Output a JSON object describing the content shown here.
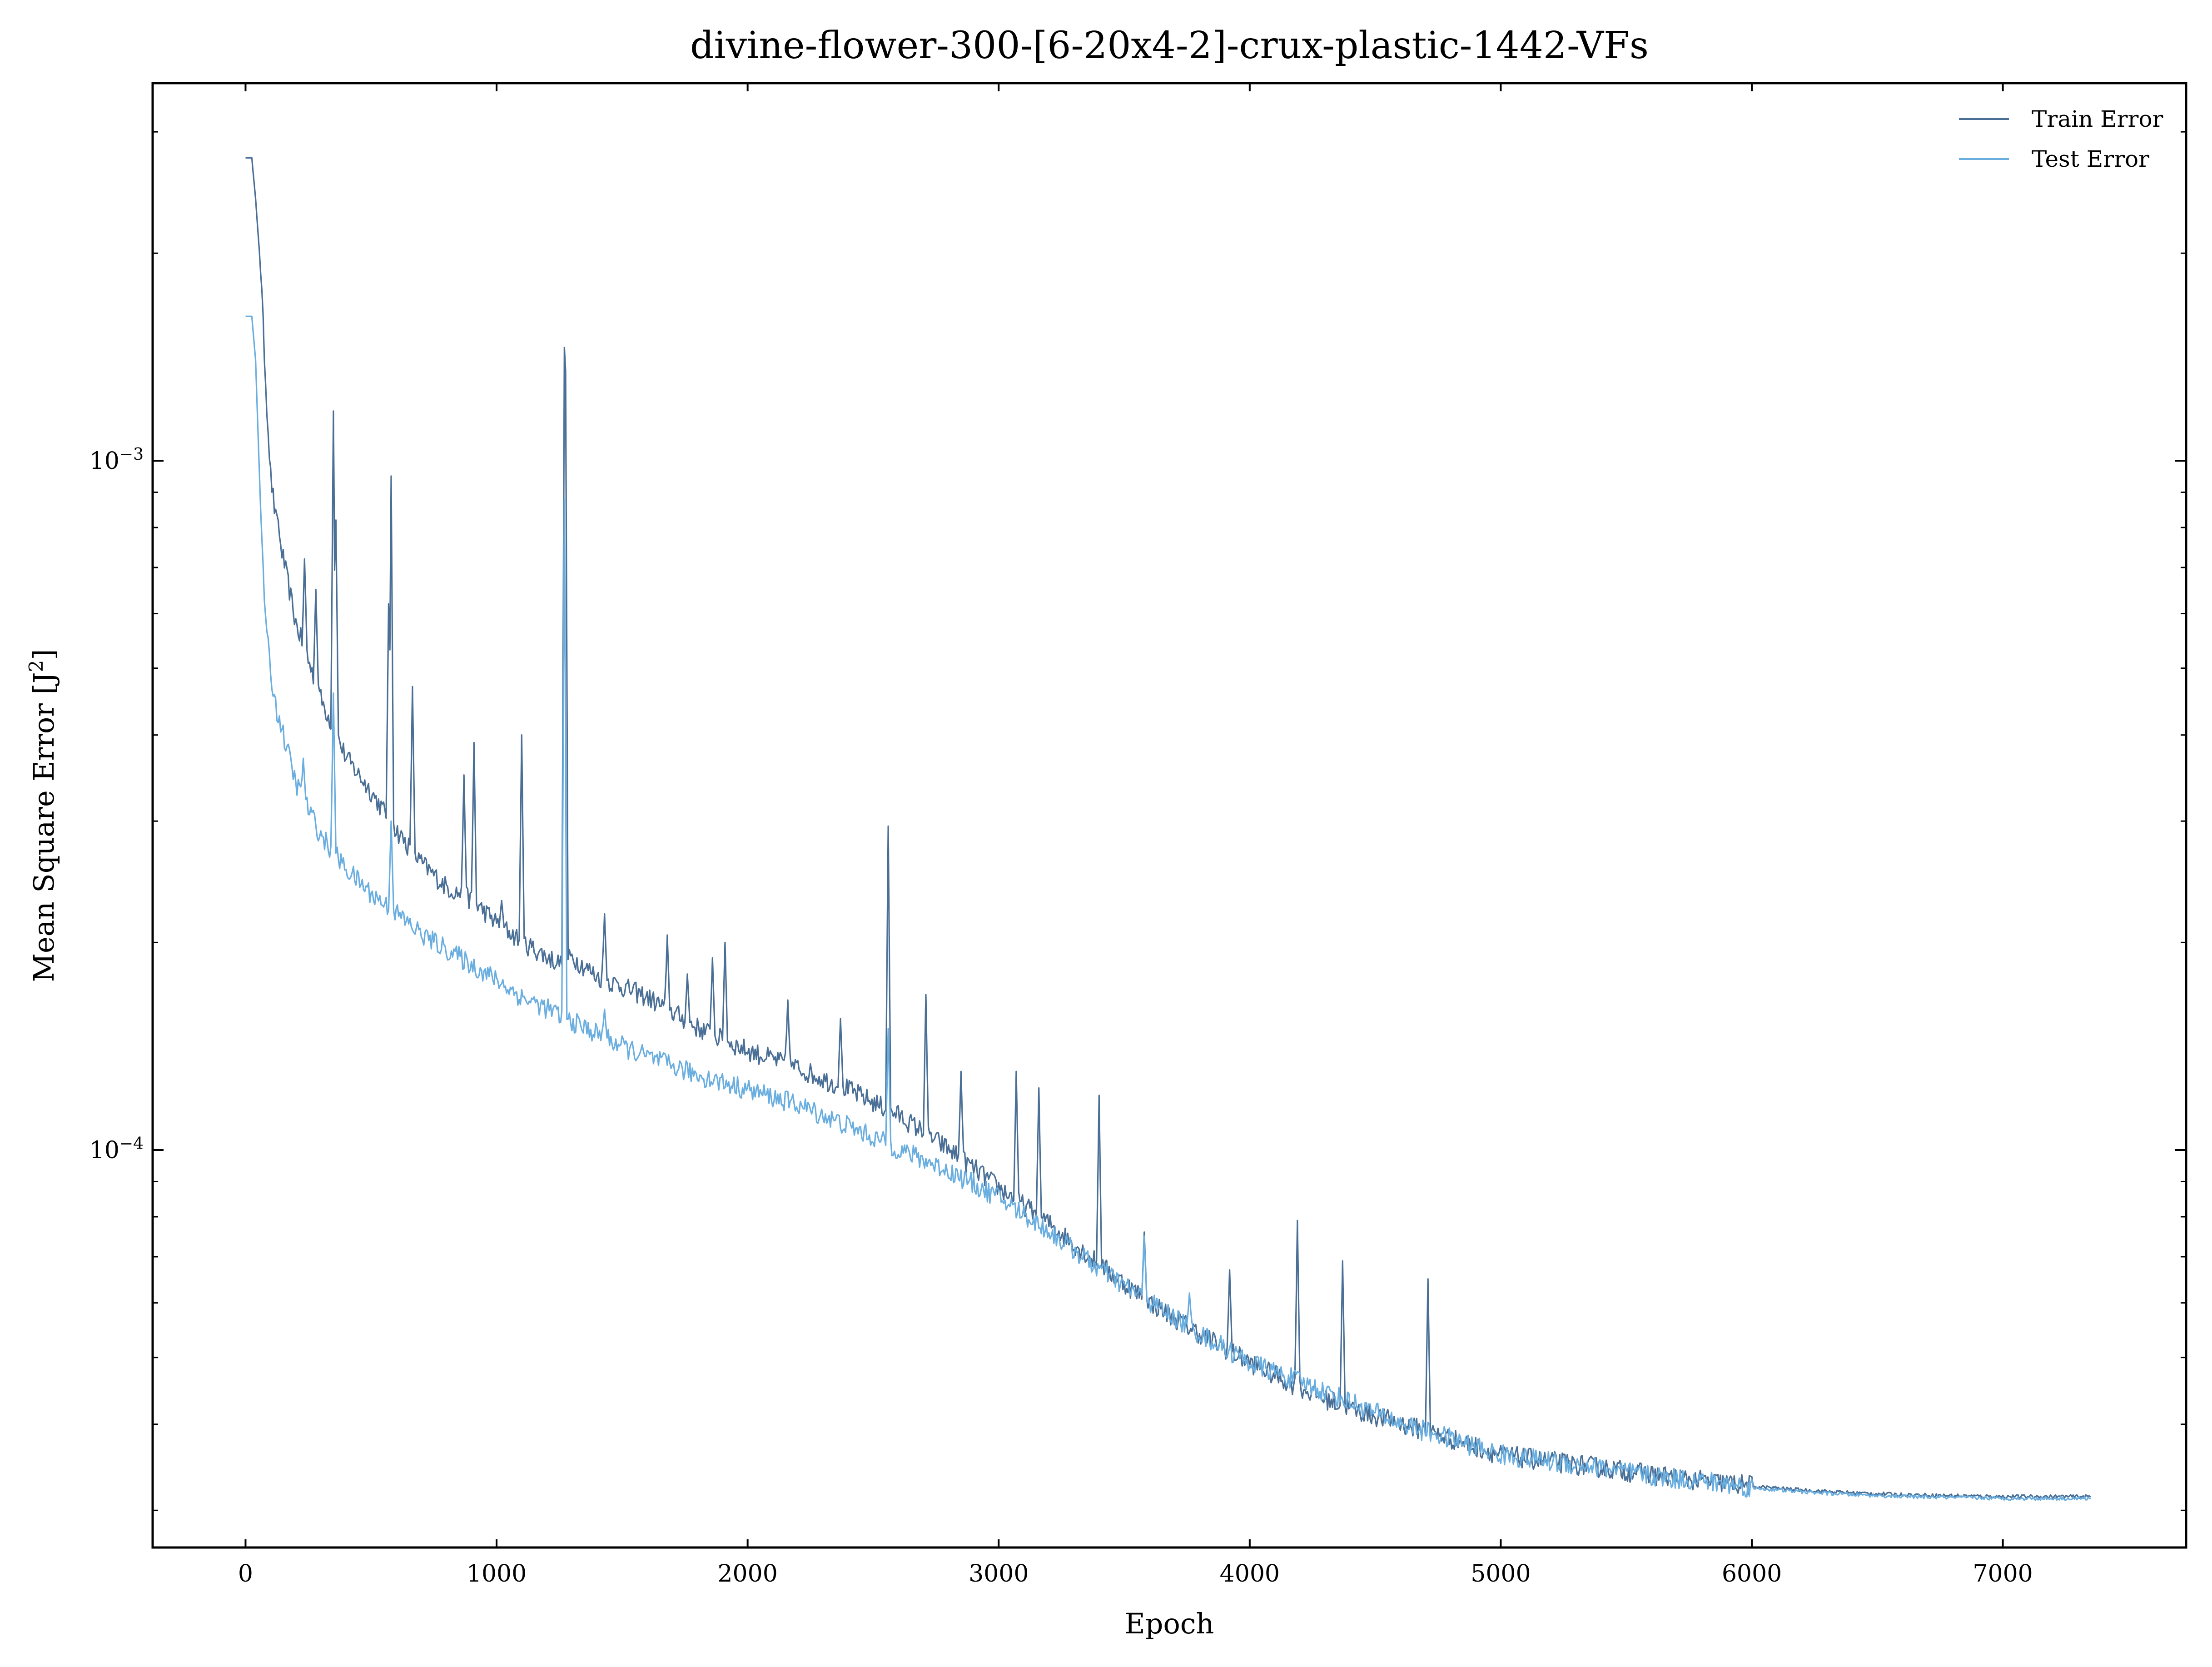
{
  "chart_data": {
    "type": "line",
    "title": "divine-flower-300-[6-20x4-2]-crux-plastic-1442-VFs",
    "xlabel": "Epoch",
    "ylabel_main": "Mean Square Error [J",
    "ylabel_sup": "2",
    "ylabel_close": "]",
    "y_scale": "log",
    "xlim": [
      -370,
      7730
    ],
    "ylim": [
      2.65e-05,
      0.00353
    ],
    "x_ticks": [
      0,
      1000,
      2000,
      3000,
      4000,
      5000,
      6000,
      7000
    ],
    "x_tick_labels": [
      "0",
      "1000",
      "2000",
      "3000",
      "4000",
      "5000",
      "6000",
      "7000"
    ],
    "y_major_ticks": [
      0.0001,
      0.001
    ],
    "y_major_tick_labels": [
      {
        "base": "10",
        "exp": "−4"
      },
      {
        "base": "10",
        "exp": "−3"
      }
    ],
    "y_minor_ticks": [
      3e-05,
      4e-05,
      5e-05,
      6e-05,
      7e-05,
      8e-05,
      9e-05,
      0.0002,
      0.0003,
      0.0004,
      0.0005,
      0.0006,
      0.0007,
      0.0008,
      0.0009,
      0.002,
      0.003
    ],
    "grid": false,
    "legend_position": "top-right",
    "series": [
      {
        "name": "Train Error",
        "color": "#4a6f96",
        "x": [
          0,
          25,
          40,
          60,
          80,
          100,
          120,
          150,
          200,
          300,
          400,
          500,
          600,
          700,
          800,
          900,
          1000,
          1100,
          1200,
          1265,
          1300,
          1400,
          1500,
          1600,
          1700,
          1800,
          1900,
          2000,
          2200,
          2400,
          2600,
          2800,
          3000,
          3200,
          3400,
          3600,
          3800,
          4000,
          4200,
          4400,
          4600,
          4800,
          5000,
          5200,
          5400,
          5600,
          5800,
          6000,
          6200,
          6400,
          6600,
          6800,
          7000,
          7200,
          7350
        ],
        "y": [
          0.00275,
          0.00275,
          0.0024,
          0.0019,
          0.0013,
          0.00095,
          0.00082,
          0.00072,
          0.00058,
          0.00045,
          0.00037,
          0.00033,
          0.00029,
          0.00026,
          0.00024,
          0.00023,
          0.000213,
          0.0002,
          0.00019,
          0.000185,
          0.00019,
          0.000178,
          0.000172,
          0.000166,
          0.000158,
          0.00015,
          0.000144,
          0.000139,
          0.000131,
          0.000122,
          0.000112,
          0.0001,
          8.8e-05,
          7.8e-05,
          6.8e-05,
          6e-05,
          5.4e-05,
          4.9e-05,
          4.5e-05,
          4.2e-05,
          4e-05,
          3.8e-05,
          3.6e-05,
          3.52e-05,
          3.45e-05,
          3.37e-05,
          3.3e-05,
          3.25e-05,
          3.21e-05,
          3.18e-05,
          3.16e-05,
          3.15e-05,
          3.14e-05,
          3.14e-05,
          3.14e-05
        ],
        "spikes": [
          [
            120,
            0.00085
          ],
          [
            235,
            0.00072
          ],
          [
            280,
            0.00065
          ],
          [
            350,
            0.00118
          ],
          [
            360,
            0.00082
          ],
          [
            570,
            0.00062
          ],
          [
            580,
            0.00095
          ],
          [
            665,
            0.00047
          ],
          [
            870,
            0.00035
          ],
          [
            910,
            0.00039
          ],
          [
            1020,
            0.00023
          ],
          [
            1100,
            0.0004
          ],
          [
            1270,
            0.00146
          ],
          [
            1275,
            0.00135
          ],
          [
            1430,
            0.00022
          ],
          [
            1680,
            0.000205
          ],
          [
            1760,
            0.00018
          ],
          [
            1860,
            0.00019
          ],
          [
            1910,
            0.0002
          ],
          [
            2160,
            0.000165
          ],
          [
            2370,
            0.000155
          ],
          [
            2560,
            0.000295
          ],
          [
            2710,
            0.000168
          ],
          [
            2850,
            0.00013
          ],
          [
            3070,
            0.00013
          ],
          [
            3160,
            0.000123
          ],
          [
            3400,
            0.00012
          ],
          [
            3580,
            7.6e-05
          ],
          [
            3920,
            6.7e-05
          ],
          [
            4190,
            7.9e-05
          ],
          [
            4370,
            6.9e-05
          ],
          [
            4710,
            6.5e-05
          ]
        ]
      },
      {
        "name": "Test Error",
        "color": "#6aaee0",
        "x": [
          0,
          25,
          40,
          60,
          80,
          100,
          120,
          150,
          200,
          300,
          400,
          500,
          600,
          700,
          800,
          900,
          1000,
          1100,
          1200,
          1265,
          1300,
          1400,
          1500,
          1600,
          1700,
          1800,
          1900,
          2000,
          2200,
          2400,
          2600,
          2800,
          3000,
          3200,
          3400,
          3600,
          3800,
          4000,
          4200,
          4400,
          4600,
          4800,
          5000,
          5200,
          5400,
          5600,
          5800,
          6000,
          6200,
          6400,
          6600,
          6800,
          7000,
          7200,
          7350
        ],
        "y": [
          0.00162,
          0.00162,
          0.0014,
          0.00085,
          0.00058,
          0.00049,
          0.00044,
          0.0004,
          0.00034,
          0.000285,
          0.000255,
          0.000235,
          0.00022,
          0.000205,
          0.000195,
          0.000185,
          0.000176,
          0.000166,
          0.00016,
          0.000155,
          0.000153,
          0.000147,
          0.000141,
          0.000136,
          0.000132,
          0.000128,
          0.000125,
          0.000122,
          0.000116,
          0.000108,
          0.0001,
          9.3e-05,
          8.5e-05,
          7.6e-05,
          6.7e-05,
          6e-05,
          5.4e-05,
          4.9e-05,
          4.6e-05,
          4.3e-05,
          4e-05,
          3.8e-05,
          3.6e-05,
          3.52e-05,
          3.45e-05,
          3.35e-05,
          3.3e-05,
          3.23e-05,
          3.19e-05,
          3.16e-05,
          3.14e-05,
          3.13e-05,
          3.12e-05,
          3.12e-05,
          3.12e-05
        ],
        "spikes": [
          [
            230,
            0.00037
          ],
          [
            350,
            0.00046
          ],
          [
            580,
            0.0003
          ],
          [
            1270,
            0.00088
          ],
          [
            1430,
            0.00016
          ],
          [
            2560,
            0.00015
          ],
          [
            3580,
            7.5e-05
          ],
          [
            3760,
            6.2e-05
          ]
        ]
      }
    ]
  }
}
